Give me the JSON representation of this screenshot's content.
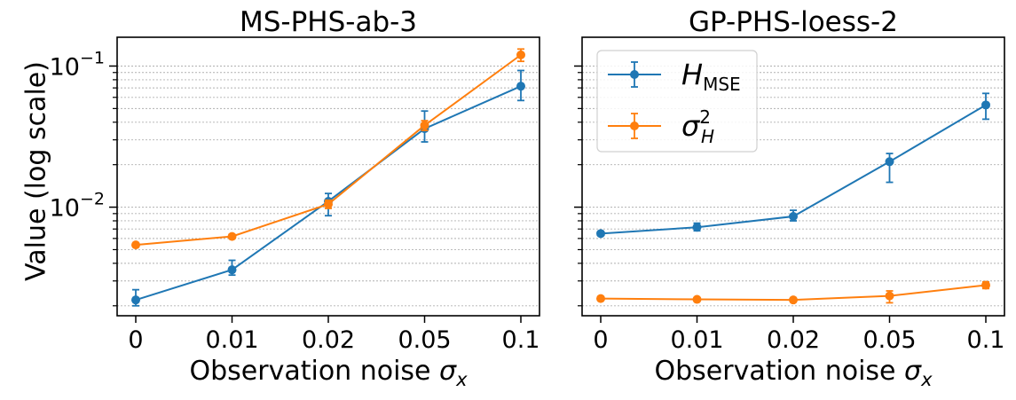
{
  "figure": {
    "ylabel": "Value (log scale)",
    "y_ticks": [
      {
        "exp": "−1",
        "value": 0.1
      },
      {
        "exp": "−2",
        "value": 0.01
      }
    ]
  },
  "chart_data": [
    {
      "type": "line",
      "title": "MS-PHS-ab-3",
      "xlabel": "Observation noise",
      "xlabel_symbol": "σ",
      "xlabel_sub": "x",
      "yscale": "log",
      "ylim": [
        0.0017,
        0.16
      ],
      "categories": [
        "0",
        "0.01",
        "0.02",
        "0.05",
        "0.1"
      ],
      "series": [
        {
          "name": "H_MSE",
          "color": "#1f77b4",
          "values": [
            0.0022,
            0.0036,
            0.011,
            0.036,
            0.072
          ],
          "err_low": [
            0.002,
            0.0033,
            0.0087,
            0.029,
            0.057
          ],
          "err_high": [
            0.0026,
            0.0042,
            0.0125,
            0.048,
            0.093
          ]
        },
        {
          "name": "sigma_H^2",
          "color": "#ff7f0e",
          "values": [
            0.0054,
            0.0062,
            0.0105,
            0.038,
            0.12
          ],
          "err_low": [
            0.0053,
            0.006,
            0.0098,
            0.035,
            0.108
          ],
          "err_high": [
            0.0055,
            0.0064,
            0.0112,
            0.041,
            0.132
          ]
        }
      ]
    },
    {
      "type": "line",
      "title": "GP-PHS-loess-2",
      "xlabel": "Observation noise",
      "xlabel_symbol": "σ",
      "xlabel_sub": "x",
      "yscale": "log",
      "ylim": [
        0.0017,
        0.16
      ],
      "categories": [
        "0",
        "0.01",
        "0.02",
        "0.05",
        "0.1"
      ],
      "legend": {
        "position": "top-left",
        "entries": [
          {
            "base": "H",
            "sub": "MSE",
            "sup": "",
            "color": "#1f77b4"
          },
          {
            "base": "σ",
            "sub": "H",
            "sup": "2",
            "color": "#ff7f0e"
          }
        ]
      },
      "series": [
        {
          "name": "H_MSE",
          "color": "#1f77b4",
          "values": [
            0.0065,
            0.0072,
            0.0086,
            0.021,
            0.053
          ],
          "err_low": [
            0.0063,
            0.0068,
            0.008,
            0.015,
            0.042
          ],
          "err_high": [
            0.0067,
            0.0077,
            0.0095,
            0.024,
            0.064
          ]
        },
        {
          "name": "sigma_H^2",
          "color": "#ff7f0e",
          "values": [
            0.00225,
            0.00222,
            0.0022,
            0.00235,
            0.0028
          ],
          "err_low": [
            0.00223,
            0.0022,
            0.00218,
            0.0021,
            0.00265
          ],
          "err_high": [
            0.00227,
            0.00224,
            0.00222,
            0.00255,
            0.00295
          ]
        }
      ]
    }
  ]
}
